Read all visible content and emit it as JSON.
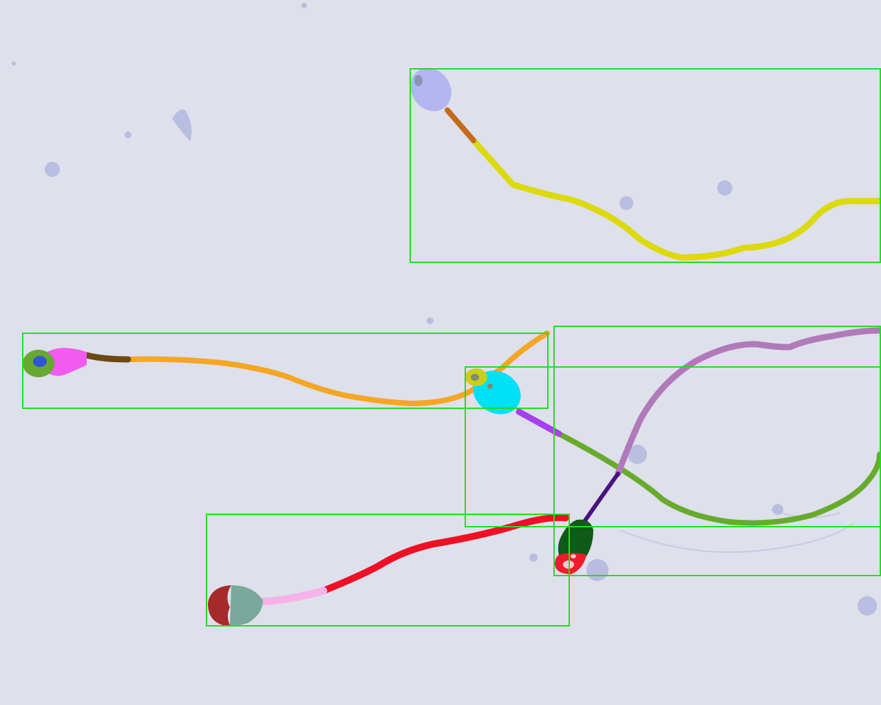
{
  "image": {
    "subject": "sperm-segmentation-overlay",
    "background_color": "#dee0ec",
    "box_color": "#22dd22"
  },
  "specimens": [
    {
      "id": "specimen-1",
      "parts": {
        "head": "#b3b6f0",
        "vacuole": "#8f8fb8",
        "midpiece": "#c46a1a",
        "tail": "#dcd90c"
      }
    },
    {
      "id": "specimen-2",
      "parts": {
        "acrosome": "#66a832",
        "nucleus": "#2f55d8",
        "head": "#f25af0",
        "neck": "#6b4a12",
        "tail": "#f5a623"
      }
    },
    {
      "id": "specimen-3",
      "parts": {
        "cap": "#c8cf1a",
        "head": "#00e1f5",
        "vacuole": "#7f8a78",
        "midpiece": "#a640f0",
        "tail": "#68ab2c"
      }
    },
    {
      "id": "specimen-4",
      "parts": {
        "head": "#0f5a18",
        "base": "#ee1c2a",
        "spots": "#f4c8d4",
        "midpiece": "#4a1280",
        "tail": "#b07ab8"
      }
    },
    {
      "id": "specimen-5",
      "parts": {
        "cap": "#a52a2a",
        "head": "#7aa89a",
        "midpiece": "#f6b2e8",
        "tail": "#ef1025"
      }
    }
  ]
}
